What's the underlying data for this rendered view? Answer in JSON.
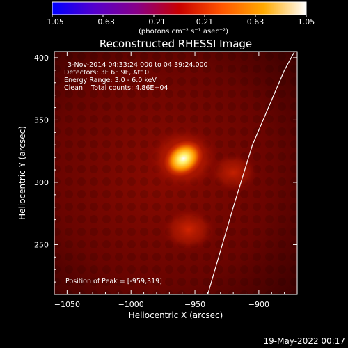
{
  "chart_data": {
    "type": "heatmap",
    "title": "Reconstructed RHESSI Image",
    "xlabel": "Heliocentric X (arcsec)",
    "ylabel": "Heliocentric Y (arcsec)",
    "xlim": [
      -1060,
      -870
    ],
    "ylim": [
      210,
      405
    ],
    "x_ticks": [
      -1050,
      -1000,
      -950,
      -900
    ],
    "x_tick_labels": [
      "−1050",
      "−1000",
      "−950",
      "−900"
    ],
    "y_ticks": [
      250,
      300,
      350,
      400
    ],
    "y_tick_labels": [
      "250",
      "300",
      "350",
      "400"
    ],
    "info_lines": [
      "3-Nov-2014 04:33:24.000 to 04:39:24.000",
      "Detectors: 3F 6F 9F, Att 0",
      "Energy Range: 3.0 - 6.0 keV",
      "Clean    Total counts: 4.86E+04"
    ],
    "peak_label": "Position of Peak = [-959,319]",
    "peak_position": [
      -959,
      319
    ],
    "sources": [
      {
        "x": -959,
        "y": 319,
        "intensity": 1.0
      },
      {
        "x": -920,
        "y": 308,
        "intensity": 0.35
      },
      {
        "x": -955,
        "y": 262,
        "intensity": 0.45
      }
    ],
    "limb_curve": [
      [
        -940,
        210
      ],
      [
        -920,
        280
      ],
      [
        -905,
        330
      ],
      [
        -880,
        390
      ],
      [
        -872,
        405
      ]
    ],
    "colorbar": {
      "min": -1.05,
      "max": 1.05,
      "tick_values": [
        -1.05,
        -0.63,
        -0.21,
        0.21,
        0.63,
        1.05
      ],
      "tick_labels": [
        "−1.05",
        "−0.63",
        "−0.21",
        "0.21",
        "0.63",
        "1.05"
      ],
      "unit_label": "(photons cm⁻² s⁻¹ asec⁻²)",
      "colors": [
        "#0000ff",
        "#5500cc",
        "#880088",
        "#c80000",
        "#ff5500",
        "#ffaa00",
        "#ffffff"
      ]
    },
    "background_color": "#000000",
    "limb_color": "#ffffff"
  },
  "footer": {
    "timestamp": "19-May-2022 00:17"
  }
}
